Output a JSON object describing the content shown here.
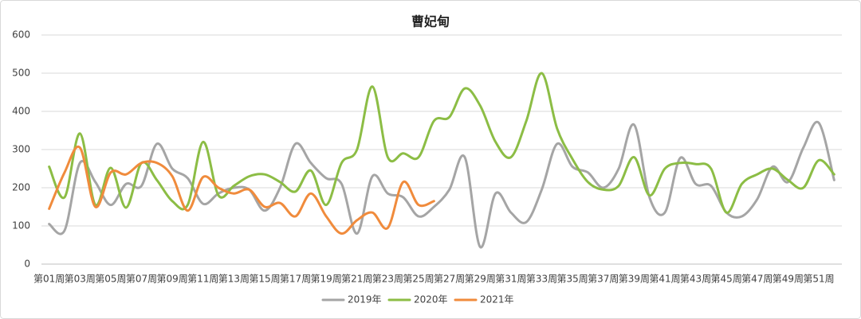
{
  "chart_data": {
    "type": "line",
    "title": "曹妃甸",
    "categories": [
      "第01周",
      null,
      "第03周",
      null,
      "第05周",
      null,
      "第07周",
      null,
      "第09周",
      null,
      "第11周",
      null,
      "第13周",
      null,
      "第15周",
      null,
      "第17周",
      null,
      "第19周",
      null,
      "第21周",
      null,
      "第23周",
      null,
      "第25周",
      null,
      "第27周",
      null,
      "第29周",
      null,
      "第31周",
      null,
      "第33周",
      null,
      "第35周",
      null,
      "第37周",
      null,
      "第39周",
      null,
      "第41周",
      null,
      "第43周",
      null,
      "第45周",
      null,
      "第47周",
      null,
      "第49周",
      null,
      "第51周",
      null
    ],
    "series": [
      {
        "name": "2019年",
        "color": "#a5a5a5",
        "values": [
          105,
          88,
          265,
          215,
          155,
          210,
          205,
          315,
          250,
          225,
          158,
          185,
          200,
          195,
          140,
          200,
          315,
          265,
          225,
          210,
          80,
          230,
          185,
          175,
          125,
          150,
          195,
          280,
          45,
          185,
          135,
          110,
          195,
          315,
          255,
          240,
          200,
          250,
          365,
          175,
          135,
          278,
          210,
          205,
          135,
          125,
          170,
          255,
          215,
          305,
          370,
          220
        ]
      },
      {
        "name": "2020年",
        "color": "#8cbd45",
        "values": [
          255,
          175,
          342,
          155,
          252,
          148,
          265,
          220,
          165,
          155,
          320,
          180,
          205,
          230,
          235,
          215,
          190,
          245,
          155,
          265,
          300,
          465,
          280,
          290,
          280,
          375,
          385,
          460,
          415,
          320,
          280,
          375,
          500,
          355,
          275,
          215,
          195,
          205,
          280,
          180,
          250,
          265,
          262,
          250,
          135,
          210,
          235,
          250,
          220,
          200,
          272,
          235
        ]
      },
      {
        "name": "2021年",
        "color": "#f08b3c",
        "values": [
          145,
          240,
          305,
          150,
          240,
          235,
          265,
          265,
          230,
          140,
          228,
          200,
          185,
          195,
          150,
          160,
          125,
          185,
          125,
          80,
          115,
          135,
          95,
          215,
          155,
          165,
          null,
          null,
          null,
          null,
          null,
          null,
          null,
          null,
          null,
          null,
          null,
          null,
          null,
          null,
          null,
          null,
          null,
          null,
          null,
          null,
          null,
          null,
          null,
          null,
          null,
          null
        ]
      }
    ],
    "ylim": [
      0,
      600
    ],
    "yticks": [
      0,
      100,
      200,
      300,
      400,
      500,
      600
    ],
    "grid": true,
    "legend": "bottom"
  }
}
